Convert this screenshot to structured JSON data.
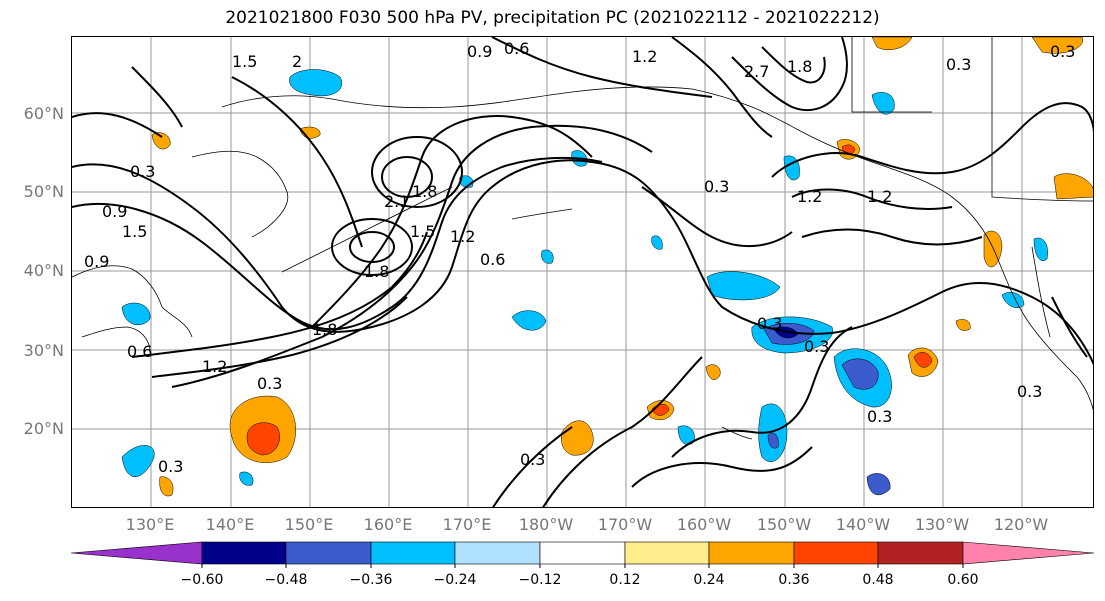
{
  "title": "2021021800 F030 500 hPa PV, precipitation PC (2021022112 - 2021022212)",
  "lat_labels": [
    "60°N",
    "50°N",
    "40°N",
    "30°N",
    "20°N"
  ],
  "lon_labels": [
    "130°E",
    "140°E",
    "150°E",
    "160°E",
    "170°E",
    "180°W",
    "170°W",
    "160°W",
    "150°W",
    "140°W",
    "130°W",
    "120°W"
  ],
  "colorbar": {
    "tick_labels": [
      "−0.60",
      "−0.48",
      "−0.36",
      "−0.24",
      "−0.12",
      "0.12",
      "0.24",
      "0.36",
      "0.48",
      "0.60"
    ],
    "colors": [
      "#9932cc",
      "#00008b",
      "#3c5bcd",
      "#00bfff",
      "#b0e2ff",
      "#ffffff",
      "#ffec8b",
      "#ffa500",
      "#ff4500",
      "#b22222",
      "#ff82ab"
    ]
  },
  "contour_labels": [
    "1.5",
    "2",
    "0.9",
    "0.6",
    "1.2",
    "2.7",
    "1.8",
    "0.3",
    "0.3",
    "0.3",
    "0.9",
    "1.5",
    "0.9",
    "2.1",
    "1.8",
    "1.5",
    "1.2",
    "0.6",
    "1.8",
    "1.8",
    "1.2",
    "0.3",
    "0.6",
    "0.3",
    "1.2",
    "1.2",
    "0.3",
    "0.3",
    "0.3",
    "0.3",
    "0.3",
    "0.3"
  ]
}
